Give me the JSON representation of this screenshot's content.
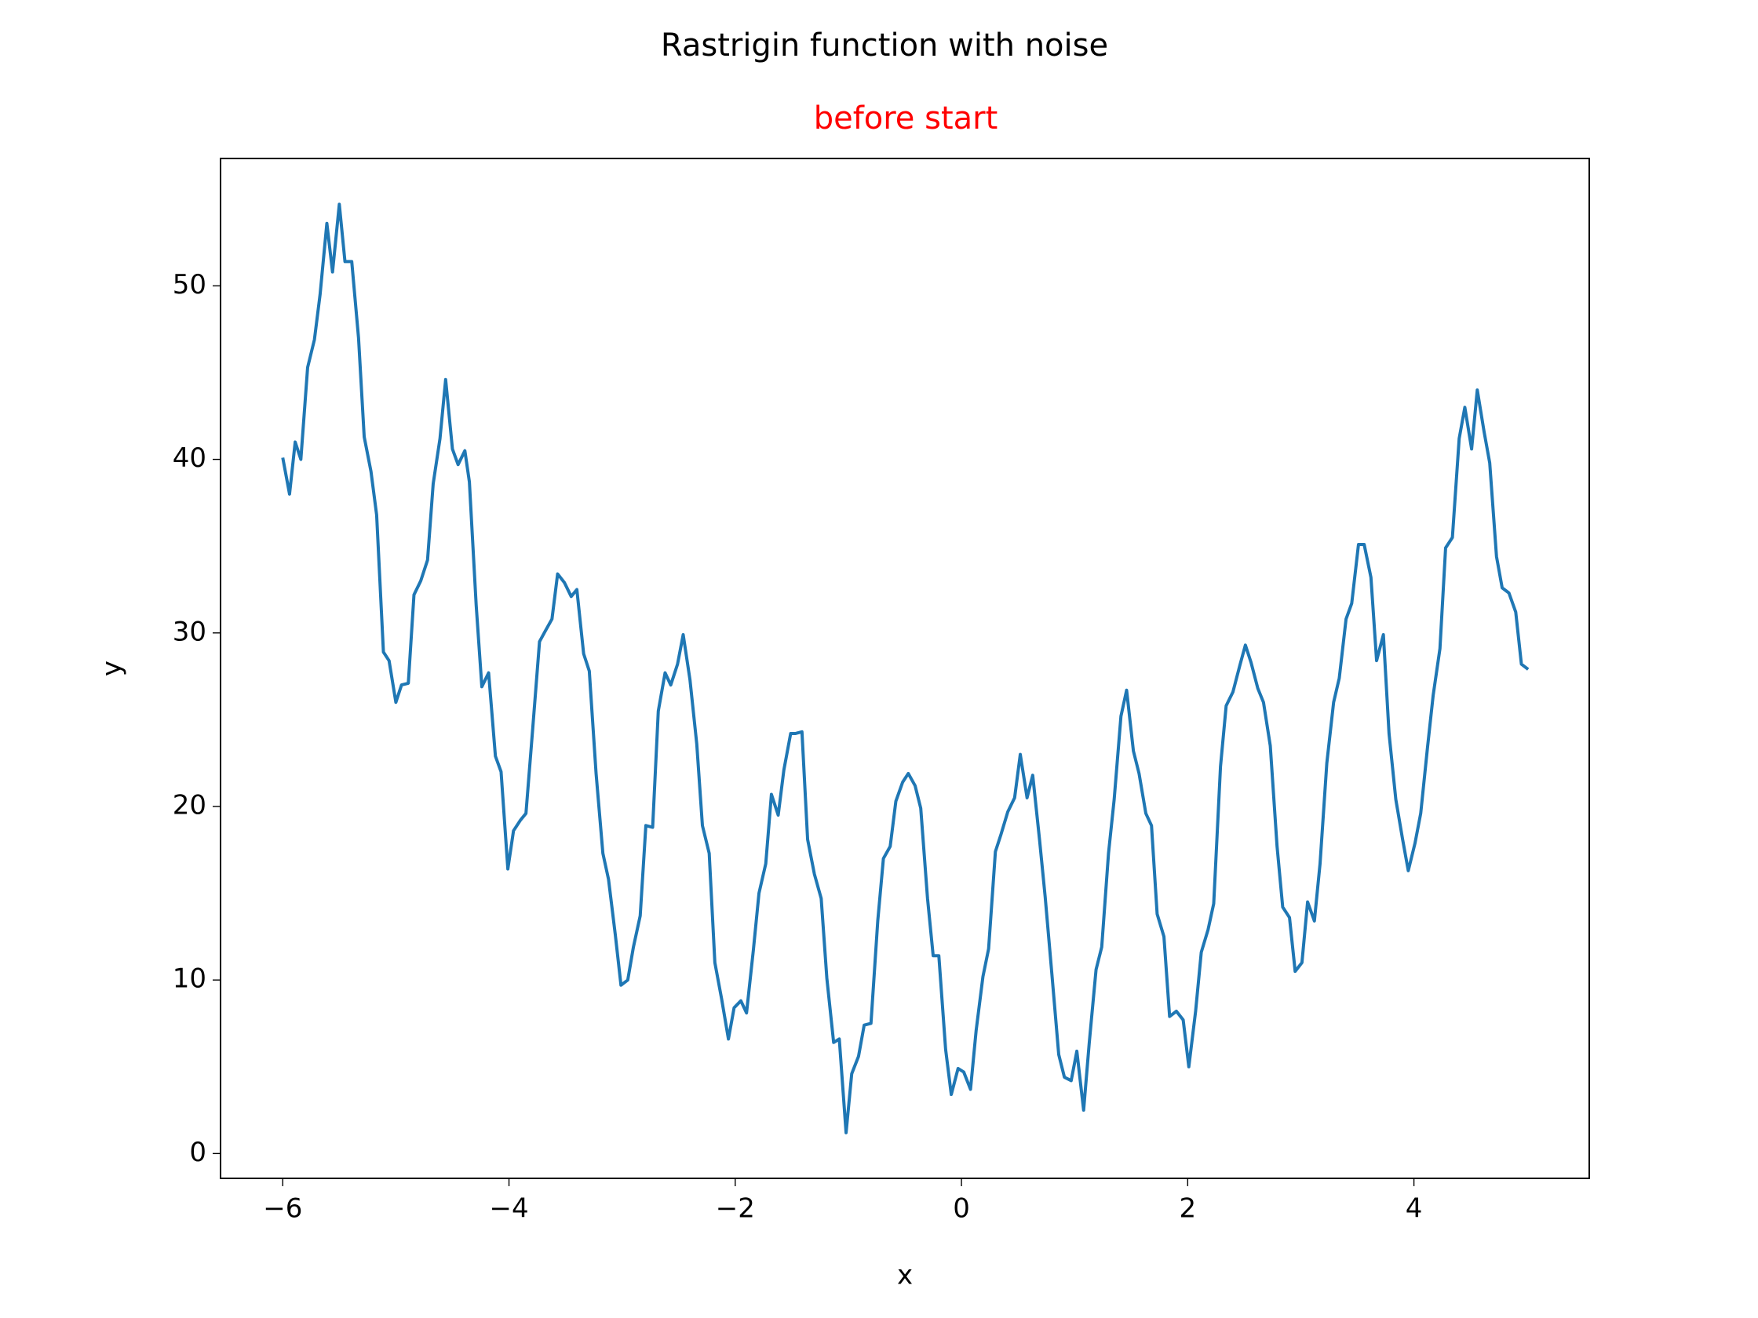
{
  "chart_data": {
    "type": "line",
    "title": "Rastrigin function with noise",
    "subtitle": "before start",
    "x_label": "x",
    "y_label": "y",
    "xlim": [
      -6.55,
      5.55
    ],
    "ylim": [
      -1.43,
      57.34
    ],
    "xticks": [
      {
        "value": -6,
        "label": "−6"
      },
      {
        "value": -4,
        "label": "−4"
      },
      {
        "value": -2,
        "label": "−2"
      },
      0,
      2,
      4
    ],
    "yticks": [
      0,
      10,
      20,
      30,
      40,
      50
    ],
    "grid": false,
    "series": [
      {
        "color": "#1f77b4",
        "x": [
          -6.0,
          -5.94,
          -5.89,
          -5.84,
          -5.78,
          -5.72,
          -5.67,
          -5.61,
          -5.56,
          -5.5,
          -5.45,
          -5.39,
          -5.33,
          -5.28,
          -5.22,
          -5.17,
          -5.11,
          -5.06,
          -5.0,
          -4.95,
          -4.89,
          -4.84,
          -4.78,
          -4.72,
          -4.67,
          -4.61,
          -4.56,
          -4.5,
          -4.45,
          -4.39,
          -4.35,
          -4.29,
          -4.24,
          -4.18,
          -4.12,
          -4.07,
          -4.01,
          -3.96,
          -3.9,
          -3.85,
          -3.79,
          -3.73,
          -3.68,
          -3.62,
          -3.57,
          -3.51,
          -3.45,
          -3.4,
          -3.34,
          -3.29,
          -3.23,
          -3.17,
          -3.12,
          -3.06,
          -3.01,
          -2.95,
          -2.9,
          -2.84,
          -2.79,
          -2.73,
          -2.68,
          -2.62,
          -2.57,
          -2.51,
          -2.46,
          -2.4,
          -2.34,
          -2.29,
          -2.23,
          -2.18,
          -2.12,
          -2.06,
          -2.01,
          -1.95,
          -1.9,
          -1.84,
          -1.79,
          -1.73,
          -1.68,
          -1.62,
          -1.57,
          -1.51,
          -1.47,
          -1.41,
          -1.36,
          -1.3,
          -1.24,
          -1.19,
          -1.13,
          -1.08,
          -1.02,
          -0.97,
          -0.91,
          -0.86,
          -0.8,
          -0.74,
          -0.69,
          -0.63,
          -0.58,
          -0.52,
          -0.47,
          -0.41,
          -0.36,
          -0.3,
          -0.25,
          -0.2,
          -0.14,
          -0.09,
          -0.03,
          0.02,
          0.08,
          0.13,
          0.19,
          0.24,
          0.3,
          0.35,
          0.41,
          0.47,
          0.52,
          0.58,
          0.63,
          0.69,
          0.74,
          0.8,
          0.86,
          0.91,
          0.97,
          1.02,
          1.08,
          1.13,
          1.19,
          1.24,
          1.3,
          1.35,
          1.41,
          1.46,
          1.52,
          1.57,
          1.63,
          1.68,
          1.73,
          1.79,
          1.84,
          1.9,
          1.96,
          2.01,
          2.07,
          2.12,
          2.18,
          2.23,
          2.29,
          2.34,
          2.4,
          2.46,
          2.51,
          2.56,
          2.62,
          2.67,
          2.73,
          2.79,
          2.84,
          2.9,
          2.95,
          3.01,
          3.06,
          3.12,
          3.17,
          3.23,
          3.29,
          3.34,
          3.4,
          3.45,
          3.51,
          3.56,
          3.62,
          3.67,
          3.73,
          3.78,
          3.84,
          3.9,
          3.95,
          4.01,
          4.06,
          4.12,
          4.17,
          4.23,
          4.28,
          4.34,
          4.4,
          4.45,
          4.51,
          4.56,
          4.62,
          4.67,
          4.73,
          4.78,
          4.84,
          4.9,
          4.95,
          5.01
        ],
        "values": [
          40.1,
          38.0,
          41.0,
          40.0,
          45.3,
          46.9,
          49.5,
          53.6,
          50.8,
          54.7,
          51.4,
          51.4,
          47.0,
          41.3,
          39.3,
          36.8,
          28.9,
          28.4,
          26.0,
          27.0,
          27.1,
          32.2,
          33.0,
          34.2,
          38.6,
          41.2,
          44.6,
          40.6,
          39.7,
          40.5,
          38.7,
          31.6,
          26.9,
          27.7,
          22.9,
          22.0,
          16.4,
          18.6,
          19.2,
          19.6,
          24.5,
          29.5,
          30.1,
          30.8,
          33.4,
          32.9,
          32.1,
          32.5,
          28.8,
          27.8,
          21.9,
          17.3,
          15.8,
          12.6,
          9.7,
          10.0,
          11.9,
          13.7,
          18.9,
          18.8,
          25.5,
          27.7,
          27.0,
          28.2,
          29.9,
          27.3,
          23.6,
          18.9,
          17.3,
          11.0,
          8.9,
          6.6,
          8.4,
          8.8,
          8.1,
          11.7,
          15.0,
          16.7,
          20.7,
          19.5,
          22.1,
          24.2,
          24.2,
          24.3,
          18.1,
          16.1,
          14.7,
          10.1,
          6.4,
          6.6,
          1.2,
          4.6,
          5.6,
          7.4,
          7.5,
          13.4,
          17.0,
          17.7,
          20.3,
          21.4,
          21.9,
          21.2,
          19.9,
          14.7,
          11.4,
          11.4,
          6.0,
          3.4,
          4.9,
          4.7,
          3.7,
          7.1,
          10.2,
          11.8,
          17.4,
          18.4,
          19.7,
          20.5,
          23.0,
          20.5,
          21.8,
          18.1,
          14.8,
          10.3,
          5.7,
          4.4,
          4.2,
          5.9,
          2.5,
          6.4,
          10.6,
          11.9,
          17.3,
          20.4,
          25.2,
          26.7,
          23.2,
          21.9,
          19.6,
          18.9,
          13.8,
          12.5,
          7.9,
          8.2,
          7.7,
          5.0,
          8.2,
          11.6,
          12.9,
          14.4,
          22.3,
          25.8,
          26.6,
          28.1,
          29.3,
          28.3,
          26.8,
          26.0,
          23.5,
          17.7,
          14.2,
          13.6,
          10.5,
          11.0,
          14.5,
          13.4,
          16.7,
          22.5,
          26.0,
          27.4,
          30.8,
          31.7,
          35.1,
          35.1,
          33.2,
          28.4,
          29.9,
          24.2,
          20.4,
          18.1,
          16.3,
          17.9,
          19.6,
          23.4,
          26.4,
          29.1,
          34.9,
          35.5,
          41.2,
          43.0,
          40.6,
          44.0,
          41.6,
          39.8,
          34.4,
          32.6,
          32.3,
          31.2,
          28.2,
          27.9
        ]
      }
    ]
  }
}
